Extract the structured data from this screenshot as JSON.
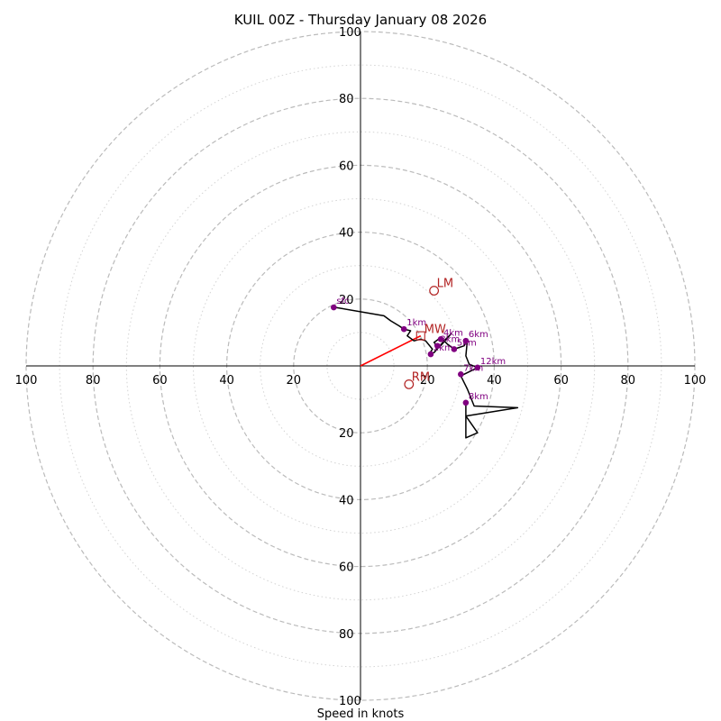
{
  "chart_data": {
    "type": "hodograph",
    "title": "KUIL 00Z - Thursday January 08 2026",
    "xlabel": "Speed in knots",
    "xlim": [
      -100,
      100
    ],
    "ylim": [
      -100,
      100
    ],
    "ring_step": 10,
    "axis_ticks": [
      100,
      80,
      60,
      40,
      20
    ],
    "colors": {
      "trace": "#000000",
      "height_marker": "#800080",
      "motion": "#b22222",
      "shear_vector": "#ff0000",
      "ring": "#bbbbbb"
    },
    "trace": [
      [
        -7.5,
        17.5
      ],
      [
        7.0,
        15.0
      ],
      [
        9.0,
        13.5
      ],
      [
        11.5,
        12.0
      ],
      [
        13.0,
        11.0
      ],
      [
        15.0,
        10.5
      ],
      [
        14.0,
        9.0
      ],
      [
        16.0,
        7.5
      ],
      [
        18.0,
        8.0
      ],
      [
        19.5,
        7.5
      ],
      [
        21.5,
        5.0
      ],
      [
        20.5,
        3.5
      ],
      [
        22.0,
        4.0
      ],
      [
        25.5,
        8.0
      ],
      [
        27.0,
        9.5
      ],
      [
        23.5,
        5.5
      ],
      [
        22.0,
        7.0
      ],
      [
        24.0,
        8.5
      ],
      [
        26.0,
        6.5
      ],
      [
        28.0,
        5.0
      ],
      [
        31.0,
        6.0
      ],
      [
        32.0,
        8.0
      ],
      [
        31.5,
        3.0
      ],
      [
        32.5,
        0.5
      ],
      [
        35.0,
        -0.5
      ],
      [
        30.0,
        -3.0
      ],
      [
        31.5,
        -6.0
      ],
      [
        32.0,
        -7.0
      ],
      [
        34.0,
        -12.0
      ],
      [
        47.0,
        -12.5
      ],
      [
        31.5,
        -15.0
      ],
      [
        35.0,
        -20.0
      ],
      [
        31.5,
        -21.5
      ],
      [
        31.5,
        -11.0
      ]
    ],
    "height_markers": [
      {
        "label": "1km",
        "u": 13.0,
        "v": 11.0
      },
      {
        "label": "2km",
        "u": 21.0,
        "v": 3.5
      },
      {
        "label": "3km",
        "u": 23.0,
        "v": 6.0
      },
      {
        "label": "4km",
        "u": 24.0,
        "v": 8.0
      },
      {
        "label": "5km",
        "u": 28.0,
        "v": 5.0
      },
      {
        "label": "6km",
        "u": 31.5,
        "v": 7.5
      },
      {
        "label": "7km",
        "u": 30.0,
        "v": -2.5
      },
      {
        "label": "8km",
        "u": 31.5,
        "v": -11.0
      },
      {
        "label": "12km",
        "u": 35.0,
        "v": -0.5
      },
      {
        "label": "sfc",
        "u": -8.0,
        "v": 17.5
      }
    ],
    "storm_motions": [
      {
        "label": "LM",
        "u": 22.0,
        "v": 22.5
      },
      {
        "label": "RM",
        "u": 14.5,
        "v": -5.5
      },
      {
        "label": "MW",
        "u": 18.0,
        "v": 9.0
      }
    ],
    "shear_vector": {
      "u": 18.0,
      "v": 9.0
    }
  }
}
